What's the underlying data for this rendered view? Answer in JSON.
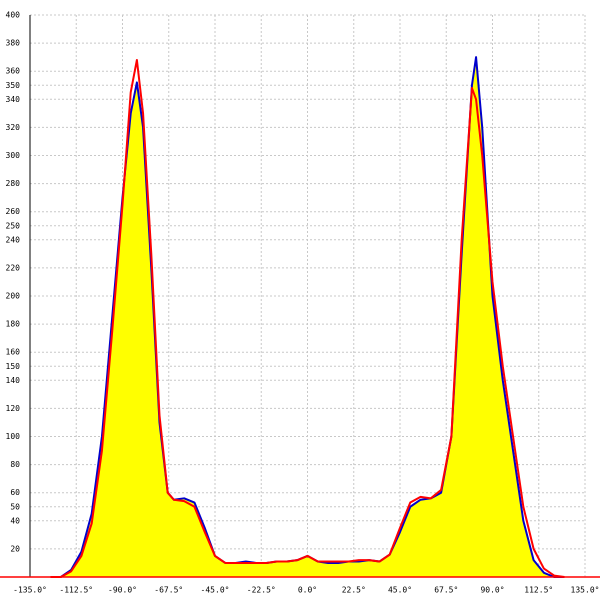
{
  "chart_data": {
    "type": "area",
    "x": [
      -125,
      -120,
      -115,
      -110,
      -105,
      -100,
      -95,
      -90,
      -86,
      -83,
      -80,
      -76,
      -72,
      -68,
      -65,
      -60,
      -55,
      -50,
      -45,
      -40,
      -35,
      -30,
      -25,
      -20,
      -15,
      -10,
      -5,
      0,
      5,
      10,
      15,
      20,
      25,
      30,
      35,
      40,
      45,
      50,
      55,
      60,
      65,
      70,
      75,
      80,
      82,
      85,
      90,
      95,
      100,
      105,
      110,
      115,
      120,
      125
    ],
    "series": [
      {
        "color": "#0000cc",
        "values": [
          0,
          0,
          5,
          18,
          45,
          100,
          185,
          270,
          330,
          352,
          320,
          220,
          110,
          60,
          55,
          56,
          53,
          35,
          15,
          10,
          10,
          11,
          10,
          10,
          11,
          11,
          12,
          15,
          11,
          10,
          10,
          11,
          11,
          12,
          11,
          16,
          32,
          50,
          55,
          56,
          60,
          100,
          230,
          350,
          370,
          320,
          200,
          140,
          90,
          40,
          12,
          3,
          0,
          0
        ]
      },
      {
        "color": "#ff0000",
        "values": [
          0,
          0,
          4,
          15,
          38,
          90,
          175,
          265,
          345,
          368,
          330,
          230,
          115,
          60,
          55,
          54,
          50,
          32,
          15,
          10,
          10,
          10,
          10,
          10,
          11,
          11,
          12,
          15,
          11,
          11,
          11,
          11,
          12,
          12,
          11,
          16,
          35,
          53,
          57,
          56,
          62,
          100,
          240,
          348,
          340,
          300,
          210,
          150,
          100,
          50,
          20,
          6,
          1,
          0
        ]
      }
    ],
    "fill": "#ffff00",
    "xlim": [
      -135,
      135
    ],
    "xticks": [
      {
        "value": -135,
        "label": "-135.0°"
      },
      {
        "value": -112.5,
        "label": "-112.5°"
      },
      {
        "value": -90,
        "label": "-90.0°"
      },
      {
        "value": -67.5,
        "label": "-67.5°"
      },
      {
        "value": -45,
        "label": "-45.0°"
      },
      {
        "value": -22.5,
        "label": "-22.5°"
      },
      {
        "value": 0,
        "label": "0.0°"
      },
      {
        "value": 22.5,
        "label": "22.5°"
      },
      {
        "value": 45,
        "label": "45.0°"
      },
      {
        "value": 67.5,
        "label": "67.5°"
      },
      {
        "value": 90,
        "label": "90.0°"
      },
      {
        "value": 112.5,
        "label": "112.5°"
      },
      {
        "value": 135,
        "label": "135.0°"
      }
    ],
    "ylim": [
      0,
      400
    ],
    "yticks": [
      20,
      40,
      50,
      60,
      80,
      100,
      120,
      140,
      150,
      160,
      180,
      200,
      220,
      240,
      250,
      260,
      280,
      300,
      320,
      340,
      350,
      360,
      380,
      400
    ],
    "grid": true
  }
}
